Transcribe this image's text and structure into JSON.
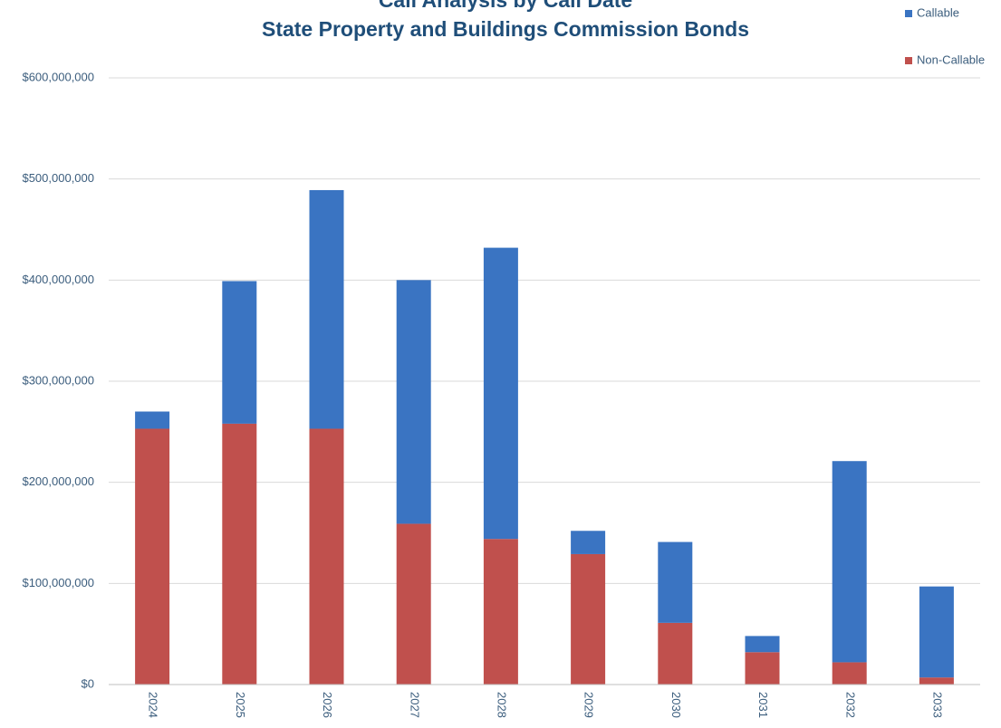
{
  "chart_data": {
    "type": "bar",
    "stacked": true,
    "title": "Call Analysis by Call Date",
    "subtitle": "State Property and Buildings Commission Bonds",
    "categories": [
      "2024",
      "2025",
      "2026",
      "2027",
      "2028",
      "2029",
      "2030",
      "2031",
      "2032",
      "2033"
    ],
    "series": [
      {
        "name": "Non-Callable",
        "color": "#c0504d",
        "values": [
          253000000,
          258000000,
          253000000,
          159000000,
          144000000,
          129000000,
          61000000,
          32000000,
          22000000,
          7000000
        ]
      },
      {
        "name": "Callable",
        "color": "#3a74c2",
        "values": [
          17000000,
          141000000,
          236000000,
          241000000,
          288000000,
          23000000,
          80000000,
          16000000,
          199000000,
          90000000
        ]
      }
    ],
    "ylim": [
      0,
      600000000
    ],
    "yticks": [
      {
        "value": 0,
        "label": "$0"
      },
      {
        "value": 100000000,
        "label": "$100,000,000"
      },
      {
        "value": 200000000,
        "label": "$200,000,000"
      },
      {
        "value": 300000000,
        "label": "$300,000,000"
      },
      {
        "value": 400000000,
        "label": "$400,000,000"
      },
      {
        "value": 500000000,
        "label": "$500,000,000"
      },
      {
        "value": 600000000,
        "label": "$600,000,000"
      }
    ],
    "grid": true,
    "legend": "top-right"
  }
}
